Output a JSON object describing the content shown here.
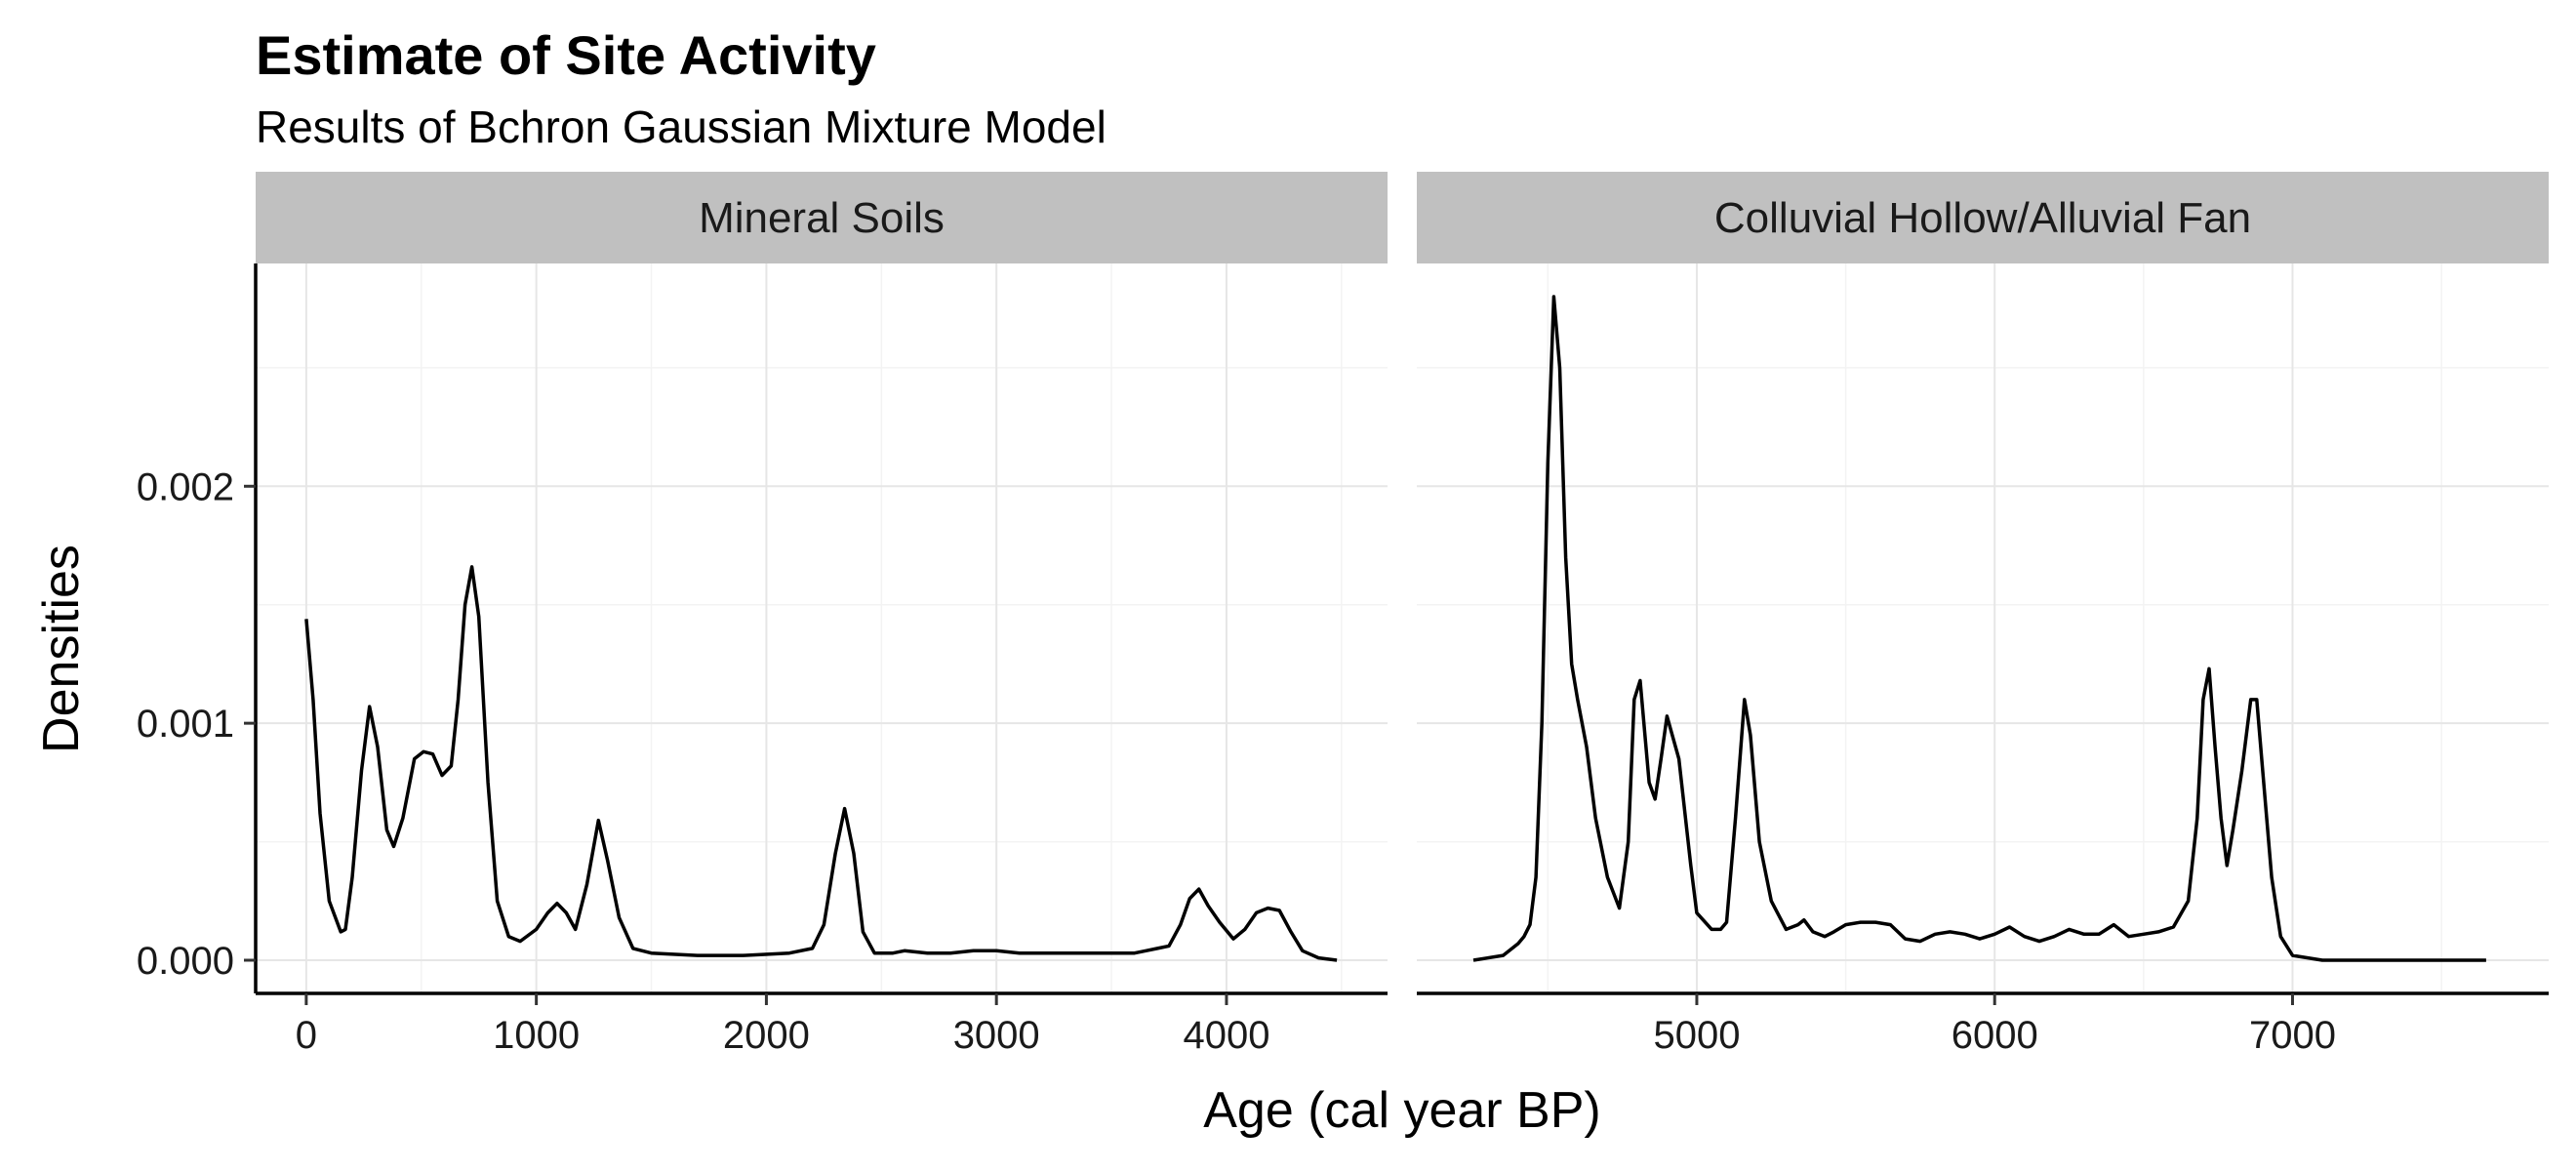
{
  "chart_data": {
    "type": "line",
    "title": "Estimate of Site Activity",
    "subtitle": "Results of Bchron Gaussian Mixture Model",
    "xlabel": "Age (cal year BP)",
    "ylabel": "Densities",
    "ylim": [
      -0.00014,
      0.00294
    ],
    "yticks": [
      0.0,
      0.001,
      0.002
    ],
    "ytick_labels": [
      "0.000",
      "0.001",
      "0.002"
    ],
    "grid": true,
    "facets": [
      {
        "strip": "Mineral Soils",
        "xlim": [
          -220,
          4700
        ],
        "xticks": [
          0,
          1000,
          2000,
          3000,
          4000
        ],
        "xtick_labels": [
          "0",
          "1000",
          "2000",
          "3000",
          "4000"
        ],
        "series": [
          {
            "x": [
              0,
              30,
              60,
              100,
              150,
              170,
              200,
              240,
              275,
              310,
              350,
              380,
              420,
              470,
              510,
              550,
              590,
              630,
              660,
              690,
              720,
              750,
              790,
              830,
              880,
              930,
              1000,
              1050,
              1090,
              1130,
              1170,
              1220,
              1270,
              1310,
              1360,
              1420,
              1500,
              1700,
              1900,
              2100,
              2200,
              2250,
              2300,
              2340,
              2380,
              2420,
              2470,
              2550,
              2600,
              2700,
              2800,
              2900,
              3000,
              3100,
              3200,
              3400,
              3600,
              3650,
              3700,
              3750,
              3800,
              3840,
              3880,
              3920,
              3970,
              4030,
              4080,
              4130,
              4180,
              4230,
              4280,
              4330,
              4400,
              4480
            ],
            "y": [
              0.00144,
              0.0011,
              0.00062,
              0.00025,
              0.00012,
              0.00013,
              0.00035,
              0.0008,
              0.00107,
              0.0009,
              0.00055,
              0.00048,
              0.0006,
              0.00085,
              0.00088,
              0.00087,
              0.00078,
              0.00082,
              0.0011,
              0.0015,
              0.00166,
              0.00145,
              0.00075,
              0.00025,
              0.0001,
              8e-05,
              0.00013,
              0.0002,
              0.00024,
              0.0002,
              0.00013,
              0.00032,
              0.00059,
              0.00042,
              0.00018,
              5e-05,
              3e-05,
              2e-05,
              2e-05,
              3e-05,
              5e-05,
              0.00015,
              0.00045,
              0.00064,
              0.00045,
              0.00012,
              3e-05,
              3e-05,
              4e-05,
              3e-05,
              3e-05,
              4e-05,
              4e-05,
              3e-05,
              3e-05,
              3e-05,
              3e-05,
              4e-05,
              5e-05,
              6e-05,
              0.00015,
              0.00026,
              0.0003,
              0.00023,
              0.00016,
              9e-05,
              0.00013,
              0.0002,
              0.00022,
              0.00021,
              0.00012,
              4e-05,
              1e-05,
              0.0
            ]
          }
        ]
      },
      {
        "strip": "Colluvial Hollow/Alluvial Fan",
        "xlim": [
          4060,
          7860
        ],
        "xticks": [
          5000,
          6000,
          7000
        ],
        "xtick_labels": [
          "5000",
          "6000",
          "7000"
        ],
        "series": [
          {
            "x": [
              4250,
              4350,
              4400,
              4420,
              4440,
              4460,
              4480,
              4500,
              4520,
              4540,
              4560,
              4580,
              4600,
              4630,
              4660,
              4700,
              4740,
              4770,
              4790,
              4810,
              4840,
              4860,
              4880,
              4900,
              4940,
              4980,
              5000,
              5050,
              5080,
              5100,
              5130,
              5160,
              5180,
              5210,
              5250,
              5300,
              5340,
              5360,
              5390,
              5430,
              5460,
              5500,
              5550,
              5600,
              5650,
              5700,
              5750,
              5800,
              5850,
              5900,
              5950,
              6000,
              6050,
              6100,
              6150,
              6200,
              6250,
              6300,
              6350,
              6400,
              6450,
              6500,
              6550,
              6600,
              6650,
              6680,
              6700,
              6720,
              6740,
              6760,
              6780,
              6800,
              6830,
              6860,
              6880,
              6900,
              6930,
              6960,
              7000,
              7100,
              7300,
              7500,
              7650
            ],
            "y": [
              0.0,
              2e-05,
              7e-05,
              0.0001,
              0.00015,
              0.00035,
              0.001,
              0.0021,
              0.0028,
              0.0025,
              0.0017,
              0.00125,
              0.0011,
              0.0009,
              0.0006,
              0.00035,
              0.00022,
              0.0005,
              0.0011,
              0.00118,
              0.00075,
              0.00068,
              0.00085,
              0.00103,
              0.00085,
              0.0004,
              0.0002,
              0.00013,
              0.00013,
              0.00016,
              0.0006,
              0.0011,
              0.00095,
              0.0005,
              0.00025,
              0.00013,
              0.00015,
              0.00017,
              0.00012,
              0.0001,
              0.00012,
              0.00015,
              0.00016,
              0.00016,
              0.00015,
              9e-05,
              8e-05,
              0.00011,
              0.00012,
              0.00011,
              9e-05,
              0.00011,
              0.00014,
              0.0001,
              8e-05,
              0.0001,
              0.00013,
              0.00011,
              0.00011,
              0.00015,
              0.0001,
              0.00011,
              0.00012,
              0.00014,
              0.00025,
              0.0006,
              0.0011,
              0.00123,
              0.0009,
              0.0006,
              0.0004,
              0.00055,
              0.0008,
              0.0011,
              0.0011,
              0.0008,
              0.00035,
              0.0001,
              2e-05,
              0.0,
              0.0,
              0.0,
              0.0
            ]
          }
        ]
      }
    ]
  }
}
